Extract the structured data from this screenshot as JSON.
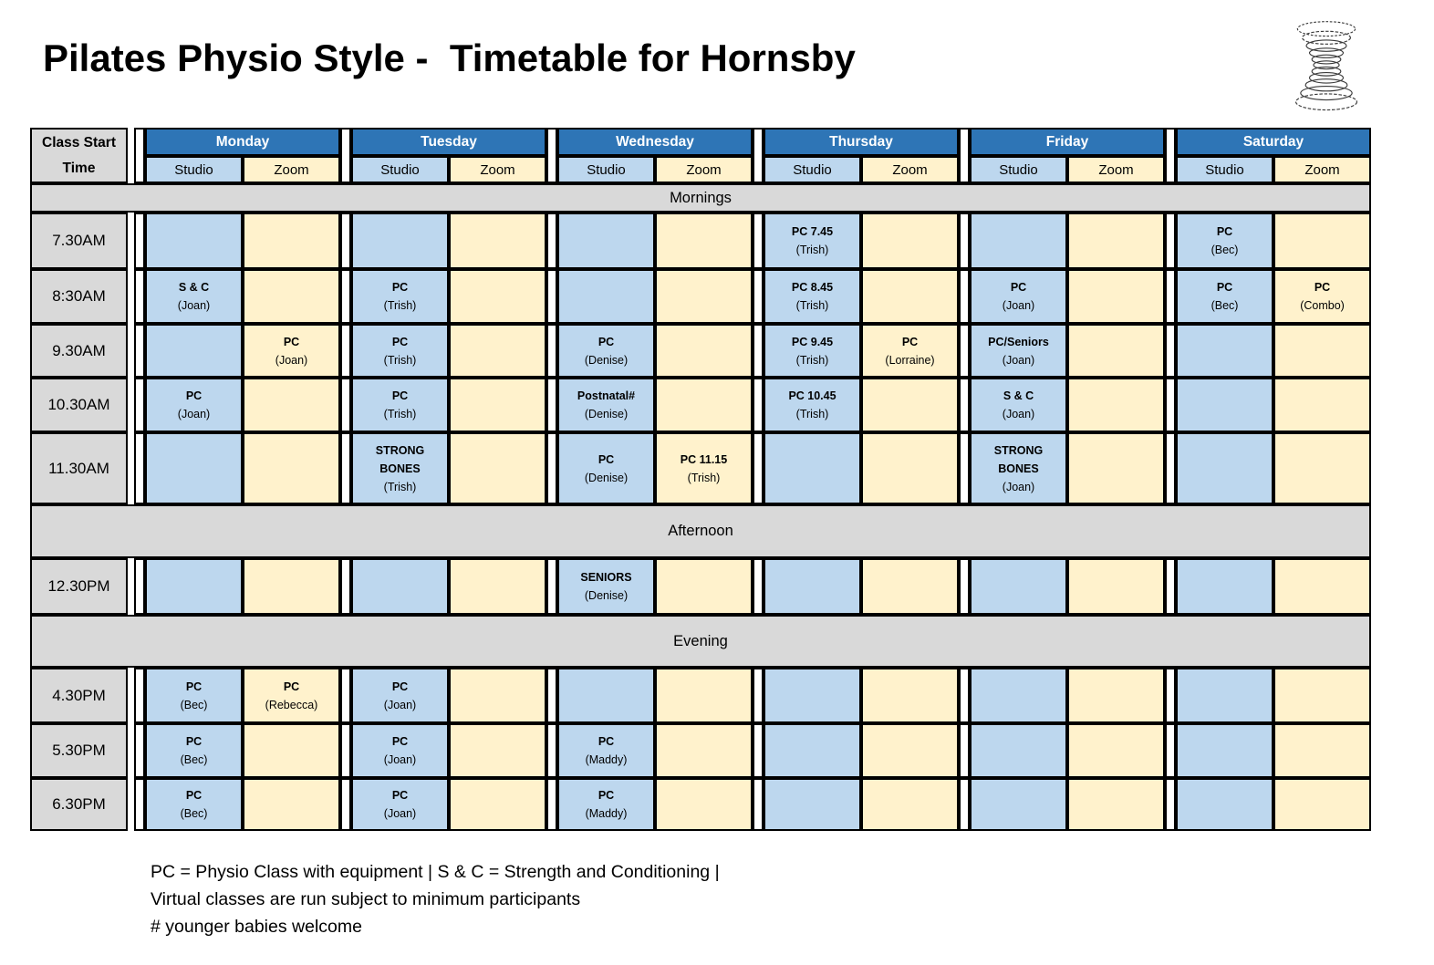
{
  "title": "Pilates Physio Style -  Timetable for Hornsby",
  "logo_icon": "spiral-hourglass-icon",
  "colors": {
    "day_header_blue": "#2E75B6",
    "studio_blue": "#BDD7EE",
    "zoom_yellow": "#FFF2CC",
    "band_gray": "#D9D9D9",
    "border_black": "#000000"
  },
  "timetable": {
    "corner_label_lines": [
      "Class Start",
      "Time"
    ],
    "days": [
      "Monday",
      "Tuesday",
      "Wednesday",
      "Thursday",
      "Friday",
      "Saturday"
    ],
    "sub_columns": [
      "Studio",
      "Zoom"
    ],
    "sections": [
      {
        "label": "Mornings",
        "rows": [
          {
            "time": "7.30AM",
            "cells": [
              {
                "studio": null,
                "zoom": null
              },
              {
                "studio": null,
                "zoom": null
              },
              {
                "studio": null,
                "zoom": null
              },
              {
                "studio": [
                  "PC 7.45",
                  "(Trish)"
                ],
                "zoom": null
              },
              {
                "studio": null,
                "zoom": null
              },
              {
                "studio": [
                  "PC",
                  "(Bec)"
                ],
                "zoom": null
              }
            ]
          },
          {
            "time": "8:30AM",
            "cells": [
              {
                "studio": [
                  "S & C",
                  "(Joan)"
                ],
                "zoom": null
              },
              {
                "studio": [
                  "PC",
                  "(Trish)"
                ],
                "zoom": null
              },
              {
                "studio": null,
                "zoom": null
              },
              {
                "studio": [
                  "PC 8.45",
                  "(Trish)"
                ],
                "zoom": null
              },
              {
                "studio": [
                  "PC",
                  "(Joan)"
                ],
                "zoom": null
              },
              {
                "studio": [
                  "PC",
                  "(Bec)"
                ],
                "zoom": [
                  "PC",
                  "(Combo)"
                ]
              }
            ]
          },
          {
            "time": "9.30AM",
            "cells": [
              {
                "studio": null,
                "zoom": [
                  "PC",
                  "(Joan)"
                ]
              },
              {
                "studio": [
                  "PC",
                  "(Trish)"
                ],
                "zoom": null
              },
              {
                "studio": [
                  "PC",
                  "(Denise)"
                ],
                "zoom": null
              },
              {
                "studio": [
                  "PC 9.45",
                  "(Trish)"
                ],
                "zoom": [
                  "PC",
                  "(Lorraine)"
                ]
              },
              {
                "studio": [
                  "PC/Seniors",
                  "(Joan)"
                ],
                "zoom": null
              },
              {
                "studio": null,
                "zoom": null
              }
            ]
          },
          {
            "time": "10.30AM",
            "cells": [
              {
                "studio": [
                  "PC",
                  "(Joan)"
                ],
                "zoom": null
              },
              {
                "studio": [
                  "PC",
                  "(Trish)"
                ],
                "zoom": null
              },
              {
                "studio": [
                  "Postnatal#",
                  "(Denise)"
                ],
                "zoom": null
              },
              {
                "studio": [
                  "PC 10.45",
                  "(Trish)"
                ],
                "zoom": null
              },
              {
                "studio": [
                  "S & C",
                  "(Joan)"
                ],
                "zoom": null
              },
              {
                "studio": null,
                "zoom": null
              }
            ]
          },
          {
            "time": "11.30AM",
            "cells": [
              {
                "studio": null,
                "zoom": null
              },
              {
                "studio": [
                  "STRONG",
                  "BONES",
                  "(Trish)"
                ],
                "zoom": null
              },
              {
                "studio": [
                  "PC",
                  "(Denise)"
                ],
                "zoom": [
                  "PC 11.15",
                  "(Trish)"
                ]
              },
              {
                "studio": null,
                "zoom": null
              },
              {
                "studio": [
                  "STRONG",
                  "BONES",
                  "(Joan)"
                ],
                "zoom": null
              },
              {
                "studio": null,
                "zoom": null
              }
            ]
          }
        ]
      },
      {
        "label": "Afternoon",
        "rows": [
          {
            "time": "12.30PM",
            "cells": [
              {
                "studio": null,
                "zoom": null
              },
              {
                "studio": null,
                "zoom": null
              },
              {
                "studio": [
                  "SENIORS",
                  "(Denise)"
                ],
                "zoom": null
              },
              {
                "studio": null,
                "zoom": null
              },
              {
                "studio": null,
                "zoom": null
              },
              {
                "studio": null,
                "zoom": null
              }
            ]
          }
        ]
      },
      {
        "label": "Evening",
        "rows": [
          {
            "time": "4.30PM",
            "cells": [
              {
                "studio": [
                  "PC",
                  "(Bec)"
                ],
                "zoom": [
                  "PC",
                  "(Rebecca)"
                ]
              },
              {
                "studio": [
                  "PC",
                  "(Joan)"
                ],
                "zoom": null
              },
              {
                "studio": null,
                "zoom": null
              },
              {
                "studio": null,
                "zoom": null
              },
              {
                "studio": null,
                "zoom": null
              },
              {
                "studio": null,
                "zoom": null
              }
            ]
          },
          {
            "time": "5.30PM",
            "cells": [
              {
                "studio": [
                  "PC",
                  "(Bec)"
                ],
                "zoom": null
              },
              {
                "studio": [
                  "PC",
                  "(Joan)"
                ],
                "zoom": null
              },
              {
                "studio": [
                  "PC",
                  "(Maddy)"
                ],
                "zoom": null
              },
              {
                "studio": null,
                "zoom": null
              },
              {
                "studio": null,
                "zoom": null
              },
              {
                "studio": null,
                "zoom": null
              }
            ]
          },
          {
            "time": "6.30PM",
            "cells": [
              {
                "studio": [
                  "PC",
                  "(Bec)"
                ],
                "zoom": null
              },
              {
                "studio": [
                  "PC",
                  "(Joan)"
                ],
                "zoom": null
              },
              {
                "studio": [
                  "PC",
                  "(Maddy)"
                ],
                "zoom": null
              },
              {
                "studio": null,
                "zoom": null
              },
              {
                "studio": null,
                "zoom": null
              },
              {
                "studio": null,
                "zoom": null
              }
            ]
          }
        ]
      }
    ]
  },
  "legend": {
    "lines": [
      "PC = Physio Class with equipment | S & C = Strength and Conditioning |",
      "Virtual classes are run subject to minimum participants",
      "# younger babies welcome"
    ]
  }
}
